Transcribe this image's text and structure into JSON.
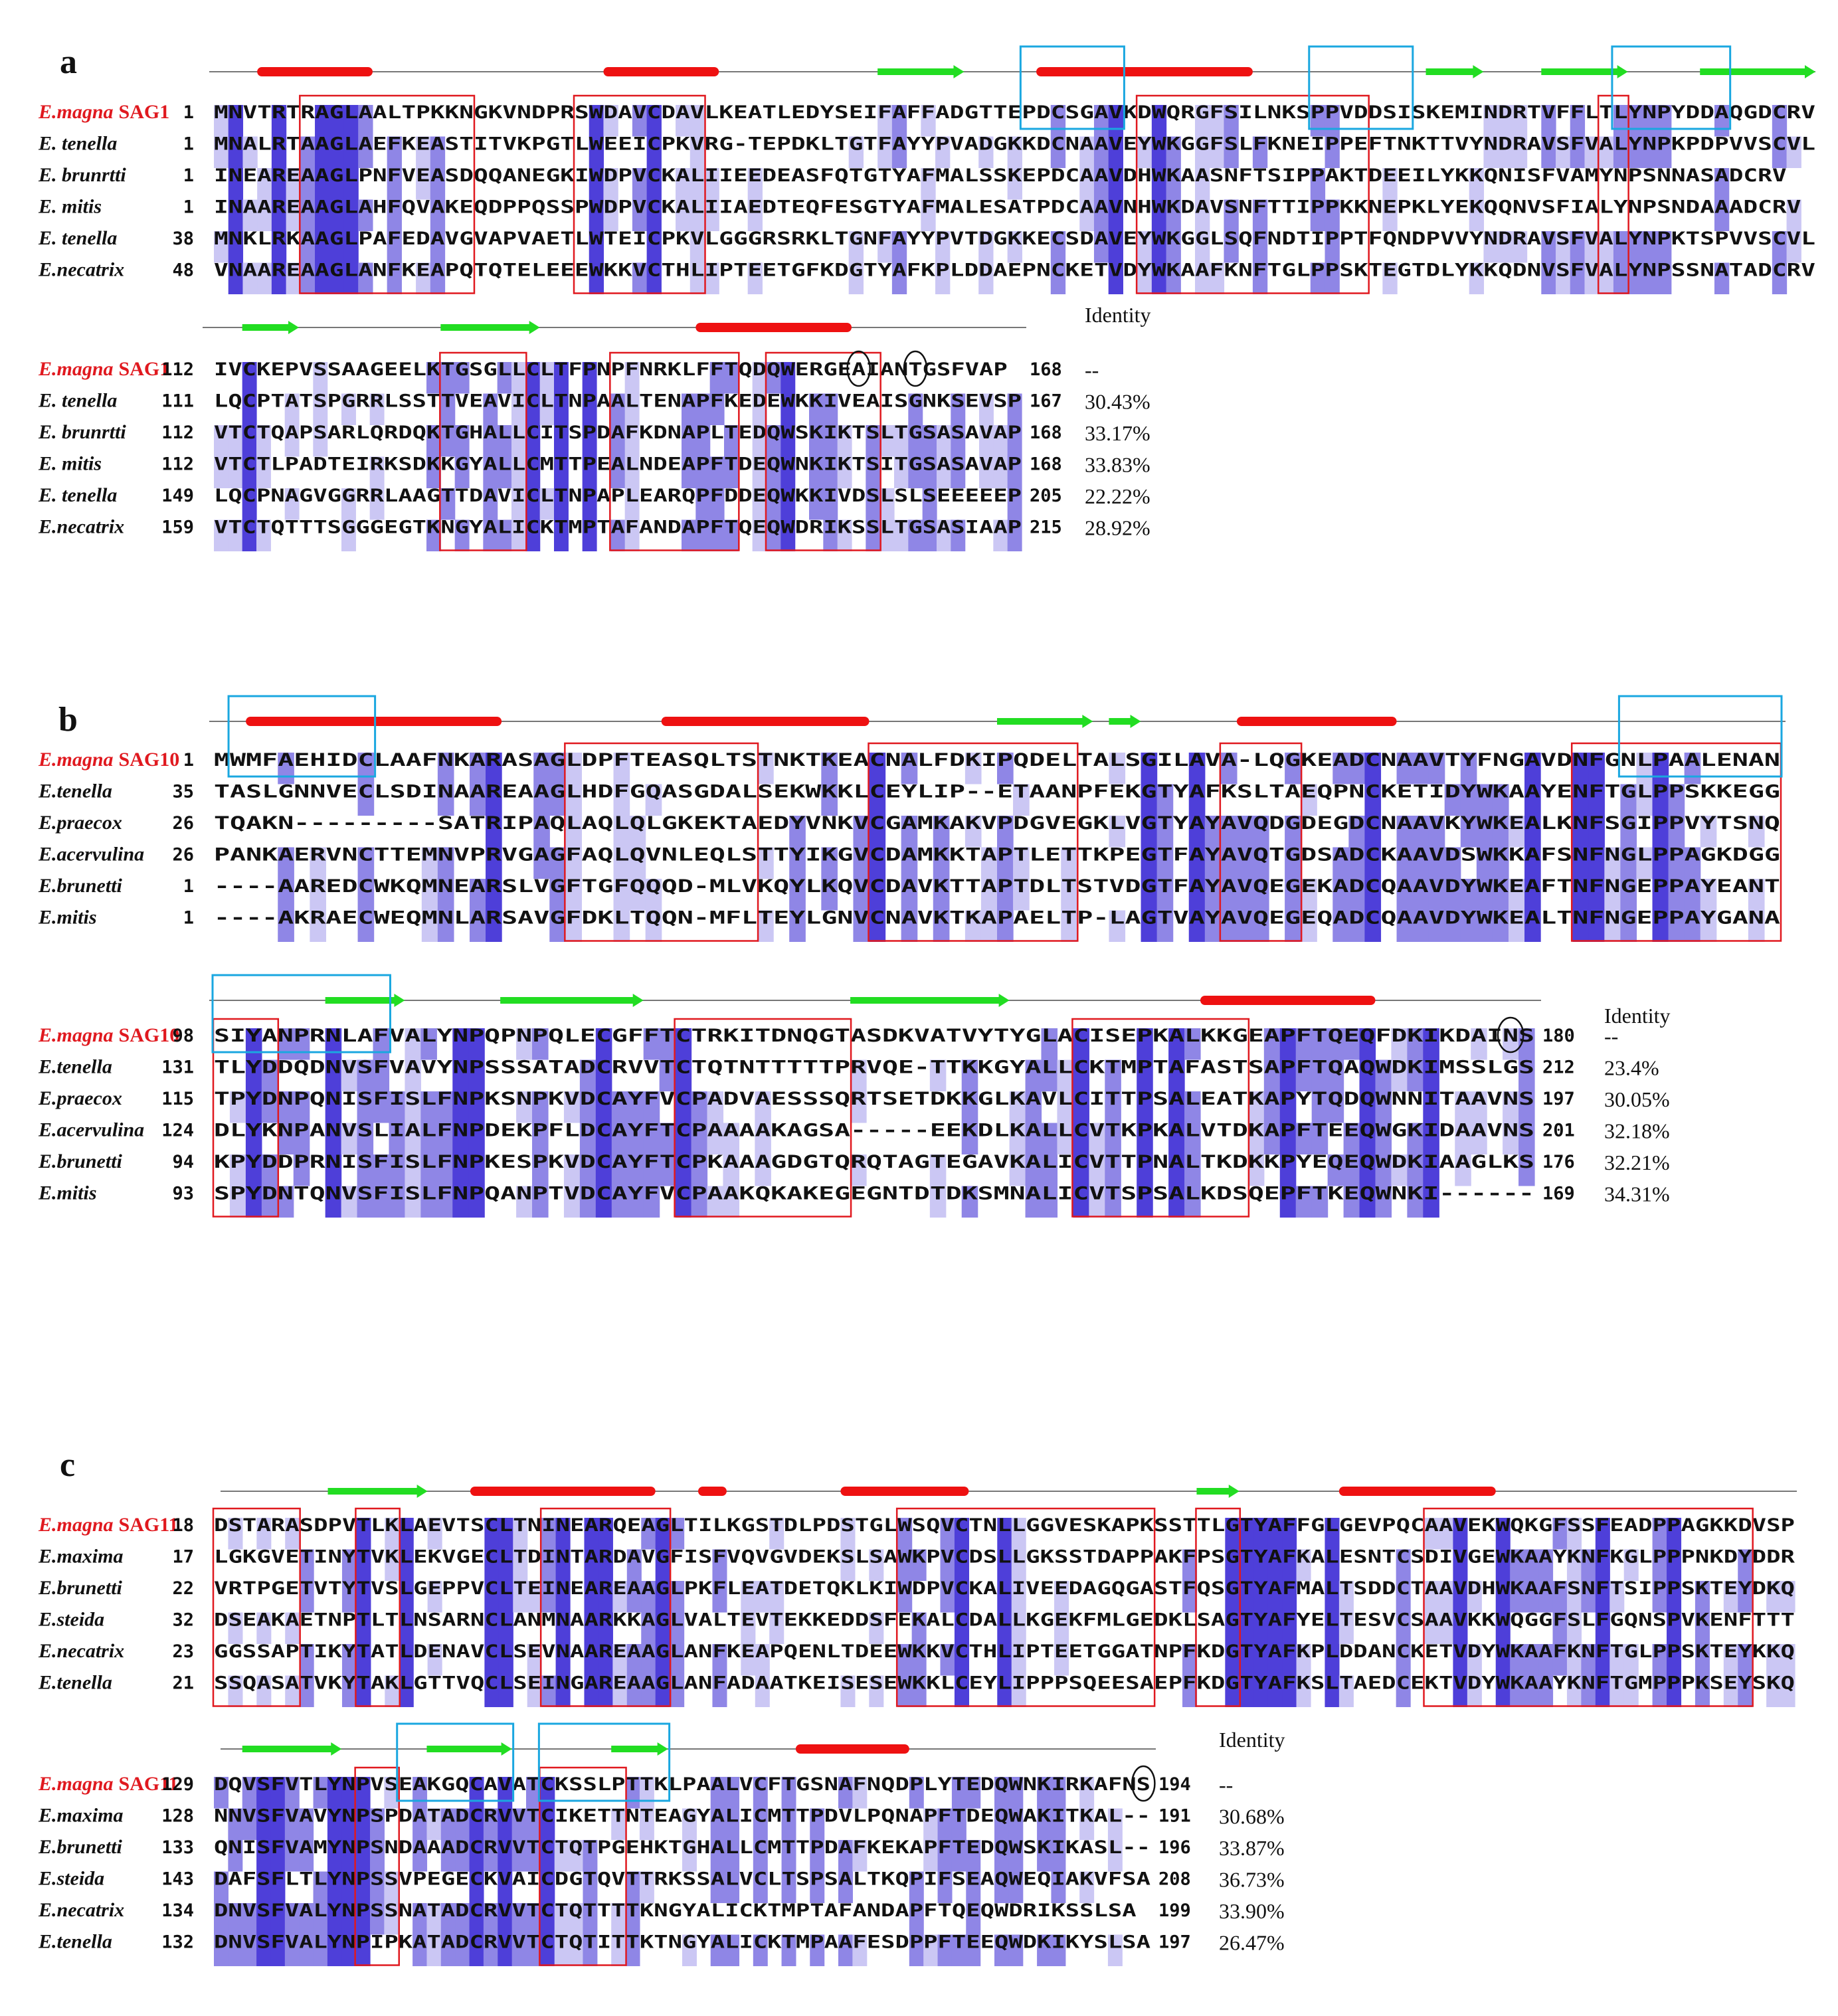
{
  "colors": {
    "helix": "#ee1111",
    "strand": "#22dd22",
    "epitope_box": "#e0191f",
    "site_box": "#1aa7e0",
    "identity_high": "#4e3fd9",
    "identity_mid": "#8f86e6",
    "identity_low": "#cbc7f4",
    "reference_species": "#e0191f"
  },
  "icons": {
    "helix": "alpha-helix-bar",
    "strand": "beta-strand-arrow",
    "glyco_site": "circled-residue"
  },
  "panels": [
    {
      "label": "a",
      "identity_header": "Identity",
      "blocks": [
        {
          "rows": [
            {
              "species_italic": "E.magna",
              "species_suffix": "SAG1",
              "ref": true,
              "start": "1",
              "seq": "MNVTRTRAGLAALTPKKNGKVNDPRSWDAVCDAVLKEATLEDYSEIFAFFADGTTEPDCSGAVKDWQRGFSILNKSPPVDDSISKEMINDRTVFFLTLYNPYDDAQGDCRV",
              "end": ""
            },
            {
              "species_italic": "E. tenella",
              "species_suffix": "",
              "ref": false,
              "start": "1",
              "seq": "MNALRTAAGLAEFKEASTITVKPGTLWEEICPKVRG-TEPDKLTGTFAYYPVADGKKDCNAAVEYWKGGFSLFKNEIPPEFTNKTTVYNDRAVSFVALYNPKPDPVVSCVL",
              "end": ""
            },
            {
              "species_italic": "E. brunrtti",
              "species_suffix": "",
              "ref": false,
              "start": "1",
              "seq": "INEAREAAGLPNFVEASDQQANEGKIWDPVCKALIIEEDEASFQTGTYAFMALSSKEPDCAAVDHWKAASNFTSIPPAKTDEEILYKKQNISFVAMYNPSNNASADCRV",
              "end": ""
            },
            {
              "species_italic": "E. mitis",
              "species_suffix": "",
              "ref": false,
              "start": "1",
              "seq": "INAAREAAGLAHFQVAKEQDPPQSSPWDPVCKALIIAEDTEQFESGTYAFMALESATPDCAAVNHWKDAVSNFTTIPPKKNEPKLYEKQQNVSFIALYNPSNDAAADCRV",
              "end": ""
            },
            {
              "species_italic": "E. tenella",
              "species_suffix": "",
              "ref": false,
              "start": "38",
              "seq": "MNKLRKAAGLPAFEDAVGVAPVAETLWTEICPKVLGGGRSRKLTGNFAYYPVTDGKKECSDAVEYWKGGLSQFNDTIPPTFQNDPVVYNDRAVSFVALYNPKTSPVVSCVL",
              "end": ""
            },
            {
              "species_italic": "E.necatrix",
              "species_suffix": "",
              "ref": false,
              "start": "48",
              "seq": "VNAAREAAGLANFKEAPQTQTELEEEWKKVCTHLIPTEETGFKDGTYAFKPLDDAEPNCKETVDYWKAAFKNFTGLPPSKTEGTDLYKKQDNVSFVALYNPSSNATADCRV",
              "end": ""
            }
          ]
        },
        {
          "rows": [
            {
              "species_italic": "E.magna",
              "species_suffix": "SAG1",
              "ref": true,
              "start": "112",
              "seq": "IVCKEPVSSAAGEELKTGSGLLCLTFPNPFNRKLFFTQDQWERGEAIANTGSFVAP",
              "end": "168",
              "identity": "--"
            },
            {
              "species_italic": "E. tenella",
              "species_suffix": "",
              "ref": false,
              "start": "111",
              "seq": "LQCPTATSPGRRLSSTTVEAVICLTNPAALTENAPFKEDEWKKIVEAISGNKSEVSP",
              "end": "167",
              "identity": "30.43%"
            },
            {
              "species_italic": "E. brunrtti",
              "species_suffix": "",
              "ref": false,
              "start": "112",
              "seq": "VTCTQAPSARLQRDQKTGHALLCITSPDAFKDNAPLTEDQWSKIKTSLTGSASAVAP",
              "end": "168",
              "identity": "33.17%"
            },
            {
              "species_italic": "E. mitis",
              "species_suffix": "",
              "ref": false,
              "start": "112",
              "seq": "VTCTLPADTEIRKSDKKGYALLCMTTPEALNDEAPFTDEQWNKIKTSITGSASAVAP",
              "end": "168",
              "identity": "33.83%"
            },
            {
              "species_italic": "E. tenella",
              "species_suffix": "",
              "ref": false,
              "start": "149",
              "seq": "LQCPNAGVGGRRLAAGTTDAVICLTNPAPLEARQPFDDEQWKKIVDSLSLSEEEEEP",
              "end": "205",
              "identity": "22.22%"
            },
            {
              "species_italic": "E.necatrix",
              "species_suffix": "",
              "ref": false,
              "start": "159",
              "seq": "VTCTQTTTSGGGEGTKNGYALICKTMPTAFANDAPFTQEQWDRIKSSLTGSASIAAP",
              "end": "215",
              "identity": "28.92%"
            }
          ]
        }
      ]
    },
    {
      "label": "b",
      "identity_header": "Identity",
      "blocks": [
        {
          "rows": [
            {
              "species_italic": "E.magna",
              "species_suffix": "SAG10",
              "ref": true,
              "start": "1",
              "seq": "MWMFAEHIDCLAAFNKARASAGLDPFTEASQLTSTNKTKEACNALFDKIPQDELTALSGILAVA-LQGKEADCNAAVTYFNGAVDNFGNLPAALENAN",
              "end": ""
            },
            {
              "species_italic": "E.tenella",
              "species_suffix": "",
              "ref": false,
              "start": "35",
              "seq": "TASLGNNVECLSDINAAREAAGLHDFGQASGDALSEKWKKLCEYLIP--ETAANPFEKGTYAFKSLTAEQPNCKETIDYWKAAYENFTGLPPSKKEGG",
              "end": ""
            },
            {
              "species_italic": "E.praecox",
              "species_suffix": "",
              "ref": false,
              "start": "26",
              "seq": "TQAKN---------SATRIPAQLAQLQLGKEKTAEDYVNKVCGAMKAKVPDGVEGKLVGTYAYAVQDGDEGDCNAAVKYWKEALKNFSGIPPVYTSNQ",
              "end": ""
            },
            {
              "species_italic": "E.acervulina",
              "species_suffix": "",
              "ref": false,
              "start": "26",
              "seq": "PANKAERVNCTTEMNVPRVGAGFAQLQVNLEQLSTTYIKGVCDAMKKTAPTLETTKPEGTFAYAVQTGDSADCKAAVDSWKKAFSNFNGLPPAGKDGG",
              "end": ""
            },
            {
              "species_italic": "E.brunetti",
              "species_suffix": "",
              "ref": false,
              "start": "1",
              "seq": "----AAREDCWKQMNEARSLVGFTGFQQQD-MLVKQYLKQVCDAVKTTAPTDLTSTVDGTFAYAVQEGEKADCQAAVDYWKEAFTNFNGEPPAYEANT",
              "end": ""
            },
            {
              "species_italic": "E.mitis",
              "species_suffix": "",
              "ref": false,
              "start": "1",
              "seq": "----AKRAECWEQMNLARSAVGFDKLTQQN-MFLTEYLGNVCNAVKTKAPAELTP-LAGTVAYAVQEGEQADCQAAVDYWKEALTNFNGEPPAYGANA",
              "end": ""
            }
          ]
        },
        {
          "rows": [
            {
              "species_italic": "E.magna",
              "species_suffix": "SAG10",
              "ref": true,
              "start": "98",
              "seq": "SIYANPRNLAFVALYNPQPNPQLECGFFTCTRKITDNQGTASDKVATVYTYGLACISEPKALKKGEAPFTQEQFDKIKDAINS",
              "end": "180",
              "identity": "--"
            },
            {
              "species_italic": "E.tenella",
              "species_suffix": "",
              "ref": false,
              "start": "131",
              "seq": "TLYDDQDNVSFVAVYNPSSSATADCRVVTCTQTNTTTTTPRVQE-TTKKGYALLCKTMPTAFASTSAPFTQAQWDKIMSSLGS",
              "end": "212",
              "identity": "23.4%"
            },
            {
              "species_italic": "E.praecox",
              "species_suffix": "",
              "ref": false,
              "start": "115",
              "seq": "TPYDNPQNISFISLFNPKSNPKVDCAYFVCPADVAESSSQRTSETDKKGLKAVLCITTPSALEATKAPYTQDQWNNITAAVNS",
              "end": "197",
              "identity": "30.05%"
            },
            {
              "species_italic": "E.acervulina",
              "species_suffix": "",
              "ref": false,
              "start": "124",
              "seq": "DLYKNPANVSLIALFNPDEKPFLDCAYFTCPAAAAKAGSA-----EEKDLKALLCVTKPKALVTDKAPFTEEQWGKIDAAVNS",
              "end": "201",
              "identity": "32.18%"
            },
            {
              "species_italic": "E.brunetti",
              "species_suffix": "",
              "ref": false,
              "start": "94",
              "seq": "KPYDDPRNISFISLFNPKESPKVDCAYFTCPKAAAGDGTQRQTAGTEGAVKALICVTTPNALTKDKKPYEQEQWDKIAAGLKS",
              "end": "176",
              "identity": "32.21%"
            },
            {
              "species_italic": "E.mitis",
              "species_suffix": "",
              "ref": false,
              "start": "93",
              "seq": "SPYDNTQNVSFISLFNPQANPTVDCAYFVCPAAKQKAKEGEGNTDTDKSMNALICVTSPSALKDSQEPFTKEQWNKI------",
              "end": "169",
              "identity": "34.31%"
            }
          ]
        }
      ]
    },
    {
      "label": "c",
      "identity_header": "Identity",
      "blocks": [
        {
          "rows": [
            {
              "species_italic": "E.magna",
              "species_suffix": "SAG11",
              "ref": true,
              "start": "18",
              "seq": "DSTARASDPVTLKLAEVTSCLTNINEARQEAGLTILKGSTDLPDSTGLWSQVCTNLLGGVESKAPKSSTTLGTYAFFGLGEVPQCAAVEKWQKGFSSFEADPPAGKKDVSP",
              "end": ""
            },
            {
              "species_italic": "E.maxima",
              "species_suffix": "",
              "ref": false,
              "start": "17",
              "seq": "LGKGVETINYTVKLEKVGECLTDINTARDAVGFISFVQVGVDEKSLSAWKPVCDSLLGKSSTDAPPAKFPSGTYAFKALESNTCSDIVGEWKAAYKNFKGLPPPNKDYDDR",
              "end": ""
            },
            {
              "species_italic": "E.brunetti",
              "species_suffix": "",
              "ref": false,
              "start": "22",
              "seq": "VRTPGETVTYTVSLGEPPVCLTEINEAREAAGLPKFLEATDETQKLKIWDPVCKALIVEEDAGQGASTFQSGTYAFMALTSDDCTAAVDHWKAAFSNFTSIPPSKTEYDKQ",
              "end": ""
            },
            {
              "species_italic": "E.steida",
              "species_suffix": "",
              "ref": false,
              "start": "32",
              "seq": "DSEAKAETNPTLTLNSARNCLANMNAARKKAGLVALTEVTEKKEDDSFEKALCDALLKGEKFMLGEDKLSAGTYAFYELTESVCSAAVKKWQGGFSLFGQNSPVKENFTTT",
              "end": ""
            },
            {
              "species_italic": "E.necatrix",
              "species_suffix": "",
              "ref": false,
              "start": "23",
              "seq": "GGSSAPTIKYTATLDENAVCLSEVNAAREAAGLANFKEAPQENLTDEEWKKVCTHLIPTEETGGATNPFKDGTYAFKPLDDANCKETVDYWKAAFKNFTGLPPSKTEYKKQ",
              "end": ""
            },
            {
              "species_italic": "E.tenella",
              "species_suffix": "",
              "ref": false,
              "start": "21",
              "seq": "SSQASATVKYTAKLGTTVQCLSEINGAREAAGLANFADAATKEISESEWKKLCEYLIPPPSQEESAEPFKDGTYAFKSLTAEDCEKTVDYWKAAYKNFTGMPPPKSEYSKQ",
              "end": ""
            }
          ]
        },
        {
          "rows": [
            {
              "species_italic": "E.magna",
              "species_suffix": "SAG11",
              "ref": true,
              "start": "129",
              "seq": "DQVSFVTLYNPVSEAKGQCAVATCKSSLPTTKLPAALVCFTGSNAFNQDPLYTEDQWNKIRKAFNS",
              "end": "194",
              "identity": "--"
            },
            {
              "species_italic": "E.maxima",
              "species_suffix": "",
              "ref": false,
              "start": "128",
              "seq": "NNVSFVAVYNPSPDATADCRVVTCIKETTNTEAGYALICMTTPDVLPQNAPFTDEQWAKITKAL--",
              "end": "191",
              "identity": "30.68%"
            },
            {
              "species_italic": "E.brunetti",
              "species_suffix": "",
              "ref": false,
              "start": "133",
              "seq": "QNISFVAMYNPSNDAAADCRVVTCTQTPGEHKTGHALLCMTTPDAFKEKAPFTEDQWSKIKASL--",
              "end": "196",
              "identity": "33.87%"
            },
            {
              "species_italic": "E.steida",
              "species_suffix": "",
              "ref": false,
              "start": "143",
              "seq": "DAFSFLTLYNPSSVPEGECKVAICDGTQVTTRKSSALVCLTSPSALTKQPIFSEAQWEQIAKVFSA",
              "end": "208",
              "identity": "36.73%"
            },
            {
              "species_italic": "E.necatrix",
              "species_suffix": "",
              "ref": false,
              "start": "134",
              "seq": "DNVSFVALYNPSSNATADCRVVTCTQTTTTKNGYALICKTMPTAFANDAPFTQEQWDRIKSSLSA",
              "end": "199",
              "identity": "33.90%"
            },
            {
              "species_italic": "E.tenella",
              "species_suffix": "",
              "ref": false,
              "start": "132",
              "seq": "DNVSFVALYNPIPKATADCRVVTCTQTITTKTNGYALICKTMPAAFESDPPFTEEQWDKIKYSLSA",
              "end": "197",
              "identity": "26.47%"
            }
          ]
        }
      ]
    }
  ]
}
